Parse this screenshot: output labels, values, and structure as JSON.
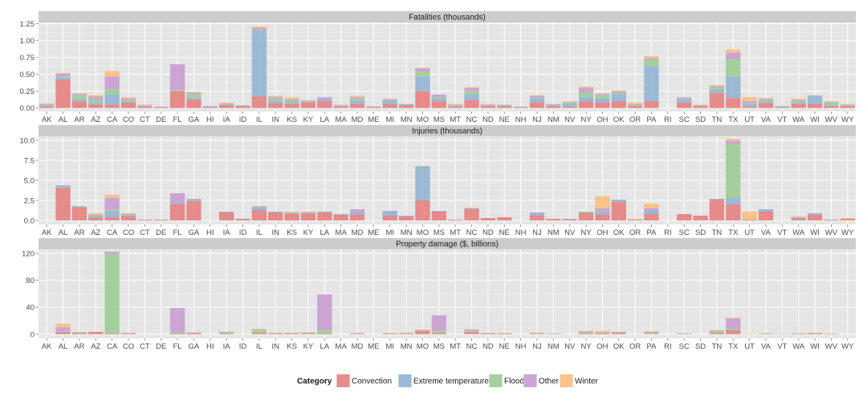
{
  "chart_data": {
    "type": "bar",
    "stacked": true,
    "categories": [
      "AK",
      "AL",
      "AR",
      "AZ",
      "CA",
      "CO",
      "CT",
      "DE",
      "FL",
      "GA",
      "HI",
      "IA",
      "ID",
      "IL",
      "IN",
      "KS",
      "KY",
      "LA",
      "MA",
      "MD",
      "ME",
      "MI",
      "MN",
      "MO",
      "MS",
      "MT",
      "NC",
      "ND",
      "NE",
      "NH",
      "NJ",
      "NM",
      "NV",
      "NY",
      "OH",
      "OK",
      "OR",
      "PA",
      "RI",
      "SC",
      "SD",
      "TN",
      "TX",
      "UT",
      "VA",
      "VT",
      "WA",
      "WI",
      "WV",
      "WY"
    ],
    "series_names": [
      "Convection",
      "Extreme temperature",
      "Flood",
      "Other",
      "Winter"
    ],
    "colors": {
      "Convection": "#E58080",
      "Extreme temperature": "#92B4D3",
      "Flood": "#9BCC95",
      "Other": "#C99CD1",
      "Winter": "#F8BF7E"
    },
    "legend": {
      "title": "Category",
      "position": "bottom"
    },
    "grid": true,
    "panels": [
      {
        "title": "Fatalities (thousands)",
        "ylim": [
          -0.05,
          1.27
        ],
        "yticks": [
          0,
          0.25,
          0.5,
          0.75,
          1,
          1.25
        ],
        "ytick_labels": [
          "0.00",
          "0.25",
          "0.50",
          "0.75",
          "1.00",
          "1.25"
        ],
        "series": [
          {
            "name": "Convection",
            "values": [
              0.02,
              0.42,
              0.1,
              0.05,
              0.05,
              0.08,
              0.02,
              0.01,
              0.25,
              0.13,
              0.01,
              0.04,
              0.03,
              0.17,
              0.07,
              0.06,
              0.08,
              0.1,
              0.02,
              0.06,
              0.01,
              0.06,
              0.04,
              0.25,
              0.1,
              0.02,
              0.12,
              0.03,
              0.03,
              0.01,
              0.08,
              0.03,
              0.02,
              0.1,
              0.08,
              0.1,
              0.03,
              0.1,
              0.0,
              0.08,
              0.03,
              0.22,
              0.15,
              0.02,
              0.07,
              0.01,
              0.06,
              0.06,
              0.03,
              0.03
            ]
          },
          {
            "name": "Extreme temperature",
            "values": [
              0.02,
              0.03,
              0.03,
              0.03,
              0.15,
              0.02,
              0.01,
              0.0,
              0.01,
              0.02,
              0.01,
              0.01,
              0.01,
              0.98,
              0.04,
              0.02,
              0.01,
              0.03,
              0.01,
              0.06,
              0.01,
              0.05,
              0.02,
              0.22,
              0.04,
              0.01,
              0.08,
              0.01,
              0.01,
              0.01,
              0.06,
              0.01,
              0.05,
              0.06,
              0.06,
              0.11,
              0.01,
              0.52,
              0.0,
              0.05,
              0.01,
              0.05,
              0.32,
              0.04,
              0.03,
              0.01,
              0.02,
              0.11,
              0.01,
              0.01
            ]
          },
          {
            "name": "Flood",
            "values": [
              0.01,
              0.02,
              0.06,
              0.05,
              0.08,
              0.02,
              0.0,
              0.0,
              0.01,
              0.06,
              0.0,
              0.01,
              0.0,
              0.01,
              0.03,
              0.03,
              0.01,
              0.0,
              0.0,
              0.02,
              0.0,
              0.01,
              0.0,
              0.07,
              0.02,
              0.01,
              0.05,
              0.0,
              0.01,
              0.0,
              0.01,
              0.01,
              0.02,
              0.07,
              0.05,
              0.02,
              0.01,
              0.1,
              0.0,
              0.01,
              0.0,
              0.04,
              0.25,
              0.01,
              0.03,
              0.01,
              0.02,
              0.01,
              0.04,
              0.01
            ]
          },
          {
            "name": "Other",
            "values": [
              0.01,
              0.04,
              0.02,
              0.04,
              0.19,
              0.02,
              0.01,
              0.01,
              0.38,
              0.02,
              0.01,
              0.01,
              0.0,
              0.03,
              0.02,
              0.02,
              0.01,
              0.03,
              0.01,
              0.02,
              0.0,
              0.01,
              0.0,
              0.05,
              0.04,
              0.01,
              0.05,
              0.01,
              0.0,
              0.0,
              0.03,
              0.01,
              0.0,
              0.07,
              0.02,
              0.02,
              0.01,
              0.02,
              0.0,
              0.02,
              0.0,
              0.02,
              0.1,
              0.03,
              0.01,
              0.0,
              0.02,
              0.01,
              0.01,
              0.0
            ]
          },
          {
            "name": "Winter",
            "values": [
              0.01,
              0.01,
              0.01,
              0.02,
              0.08,
              0.02,
              0.01,
              0.0,
              0.0,
              0.01,
              0.0,
              0.01,
              0.0,
              0.02,
              0.02,
              0.03,
              0.01,
              0.0,
              0.01,
              0.02,
              0.01,
              0.01,
              0.0,
              0.01,
              0.0,
              0.01,
              0.01,
              0.01,
              0.0,
              0.0,
              0.01,
              0.0,
              0.01,
              0.02,
              0.01,
              0.01,
              0.02,
              0.03,
              0.0,
              0.0,
              0.01,
              0.01,
              0.05,
              0.06,
              0.01,
              0.0,
              0.02,
              0.0,
              0.01,
              0.01
            ]
          }
        ]
      },
      {
        "title": "Injuries (thousands)",
        "ylim": [
          -0.5,
          10.5
        ],
        "yticks": [
          0,
          2.5,
          5,
          7.5,
          10
        ],
        "ytick_labels": [
          "0.0",
          "2.5",
          "5.0",
          "7.5",
          "10.0"
        ],
        "series": [
          {
            "name": "Convection",
            "values": [
              0.0,
              4.0,
              1.6,
              0.3,
              0.4,
              0.5,
              0.1,
              0.1,
              2.0,
              2.4,
              0.0,
              1.0,
              0.2,
              1.3,
              1.0,
              0.8,
              0.8,
              1.0,
              0.7,
              0.7,
              0.0,
              0.6,
              0.5,
              2.5,
              1.1,
              0.1,
              1.4,
              0.3,
              0.4,
              0.0,
              0.6,
              0.2,
              0.1,
              0.9,
              0.7,
              2.3,
              0.1,
              0.8,
              0.0,
              0.8,
              0.6,
              2.6,
              2.0,
              0.1,
              1.1,
              0.0,
              0.2,
              0.7,
              0.1,
              0.2
            ]
          },
          {
            "name": "Extreme temperature",
            "values": [
              0.0,
              0.2,
              0.1,
              0.2,
              0.7,
              0.1,
              0.0,
              0.0,
              0.2,
              0.1,
              0.0,
              0.1,
              0.0,
              0.3,
              0.1,
              0.1,
              0.1,
              0.1,
              0.1,
              0.3,
              0.0,
              0.6,
              0.1,
              4.2,
              0.1,
              0.0,
              0.1,
              0.0,
              0.0,
              0.0,
              0.3,
              0.0,
              0.1,
              0.1,
              0.4,
              0.3,
              0.0,
              0.5,
              0.0,
              0.0,
              0.0,
              0.1,
              0.8,
              0.0,
              0.3,
              0.0,
              0.1,
              0.2,
              0.0,
              0.0
            ]
          },
          {
            "name": "Flood",
            "values": [
              0.0,
              0.1,
              0.1,
              0.1,
              0.2,
              0.1,
              0.0,
              0.0,
              0.0,
              0.1,
              0.0,
              0.0,
              0.0,
              0.1,
              0.0,
              0.1,
              0.0,
              0.0,
              0.0,
              0.0,
              0.0,
              0.0,
              0.0,
              0.1,
              0.0,
              0.0,
              0.0,
              0.0,
              0.0,
              0.0,
              0.0,
              0.0,
              0.0,
              0.1,
              0.1,
              0.0,
              0.0,
              0.0,
              0.0,
              0.0,
              0.0,
              0.0,
              6.7,
              0.0,
              0.0,
              0.0,
              0.0,
              0.0,
              0.0,
              0.0
            ]
          },
          {
            "name": "Other",
            "values": [
              0.0,
              0.1,
              0.0,
              0.1,
              1.5,
              0.1,
              0.0,
              0.0,
              1.2,
              0.1,
              0.0,
              0.0,
              0.0,
              0.1,
              0.0,
              0.0,
              0.1,
              0.0,
              0.0,
              0.4,
              0.0,
              0.0,
              0.0,
              0.0,
              0.0,
              0.0,
              0.0,
              0.0,
              0.0,
              0.0,
              0.1,
              0.0,
              0.0,
              0.0,
              0.3,
              0.0,
              0.0,
              0.2,
              0.0,
              0.0,
              0.0,
              0.0,
              0.4,
              0.0,
              0.0,
              0.0,
              0.1,
              0.0,
              0.0,
              0.0
            ]
          },
          {
            "name": "Winter",
            "values": [
              0.0,
              0.0,
              0.0,
              0.2,
              0.4,
              0.1,
              0.0,
              0.0,
              0.0,
              0.0,
              0.0,
              0.0,
              0.0,
              0.0,
              0.0,
              0.1,
              0.1,
              0.0,
              0.0,
              0.0,
              0.0,
              0.0,
              0.0,
              0.0,
              0.0,
              0.0,
              0.1,
              0.0,
              0.0,
              0.0,
              0.0,
              0.0,
              0.0,
              0.0,
              1.5,
              0.0,
              0.1,
              0.6,
              0.0,
              0.0,
              0.0,
              0.0,
              0.3,
              1.0,
              0.0,
              0.0,
              0.1,
              0.0,
              0.0,
              0.1
            ]
          }
        ]
      },
      {
        "title": "Property damage ($, billions)",
        "ylim": [
          -6,
          126
        ],
        "yticks": [
          0,
          40,
          80,
          120
        ],
        "ytick_labels": [
          "0",
          "40",
          "80",
          "120"
        ],
        "series": [
          {
            "name": "Convection",
            "values": [
              0.0,
              3.0,
              1.5,
              3.0,
              1.0,
              1.0,
              0.0,
              0.0,
              1.0,
              1.5,
              0.0,
              1.0,
              0.0,
              2.0,
              1.0,
              1.0,
              1.0,
              1.0,
              0.0,
              0.5,
              0.0,
              0.5,
              1.0,
              5.0,
              2.0,
              0.0,
              3.0,
              1.0,
              1.0,
              0.0,
              0.5,
              0.0,
              0.0,
              1.0,
              1.5,
              2.0,
              0.0,
              1.0,
              0.0,
              0.5,
              0.0,
              2.0,
              6.0,
              0.0,
              0.5,
              0.0,
              0.3,
              1.0,
              0.3,
              0.0
            ]
          },
          {
            "name": "Extreme temperature",
            "values": [
              0.0,
              0.5,
              0.0,
              0.0,
              0.5,
              0.0,
              0.0,
              0.0,
              0.0,
              0.0,
              0.0,
              0.0,
              0.0,
              0.0,
              0.0,
              0.0,
              0.0,
              0.0,
              0.0,
              0.0,
              0.0,
              0.0,
              0.0,
              0.0,
              0.0,
              0.0,
              0.0,
              0.0,
              0.0,
              0.0,
              0.0,
              0.0,
              0.0,
              0.0,
              0.0,
              0.0,
              0.0,
              0.0,
              0.0,
              0.0,
              0.0,
              0.0,
              0.5,
              0.0,
              0.0,
              0.0,
              0.0,
              0.0,
              0.0,
              0.0
            ]
          },
          {
            "name": "Flood",
            "values": [
              0.0,
              1.0,
              1.0,
              0.5,
              118.0,
              0.5,
              0.0,
              0.0,
              2.0,
              0.5,
              0.0,
              2.0,
              0.0,
              5.0,
              0.5,
              0.5,
              1.0,
              5.0,
              0.0,
              0.5,
              0.0,
              0.5,
              0.5,
              1.0,
              3.0,
              0.0,
              2.0,
              1.0,
              0.5,
              0.0,
              1.0,
              0.5,
              0.0,
              2.5,
              1.0,
              1.0,
              0.0,
              2.0,
              0.0,
              0.5,
              0.0,
              3.5,
              2.0,
              0.0,
              0.5,
              0.5,
              0.5,
              0.5,
              0.5,
              0.0
            ]
          },
          {
            "name": "Other",
            "values": [
              0.0,
              6.0,
              0.5,
              0.0,
              3.0,
              0.5,
              0.0,
              0.0,
              36.0,
              0.5,
              0.0,
              0.5,
              0.0,
              0.5,
              0.5,
              0.5,
              0.5,
              53.0,
              0.0,
              0.5,
              0.0,
              0.5,
              0.5,
              0.5,
              23.0,
              0.0,
              2.0,
              0.0,
              0.0,
              0.0,
              0.5,
              0.5,
              0.0,
              1.0,
              0.5,
              0.5,
              0.0,
              0.5,
              0.0,
              0.0,
              0.0,
              0.5,
              15.0,
              0.0,
              0.0,
              0.0,
              0.3,
              0.5,
              0.0,
              0.0
            ]
          },
          {
            "name": "Winter",
            "values": [
              0.0,
              5.0,
              0.5,
              0.5,
              0.5,
              0.5,
              0.0,
              0.0,
              0.0,
              0.5,
              0.0,
              0.5,
              0.0,
              0.5,
              0.5,
              0.5,
              0.5,
              0.0,
              0.0,
              0.5,
              0.0,
              0.5,
              0.5,
              0.5,
              0.0,
              0.0,
              0.5,
              0.0,
              0.0,
              0.0,
              0.5,
              0.0,
              0.0,
              0.5,
              2.0,
              0.5,
              0.0,
              1.0,
              0.0,
              0.5,
              0.0,
              0.0,
              1.0,
              0.5,
              0.5,
              0.0,
              0.3,
              0.5,
              0.3,
              0.0
            ]
          }
        ]
      }
    ]
  }
}
